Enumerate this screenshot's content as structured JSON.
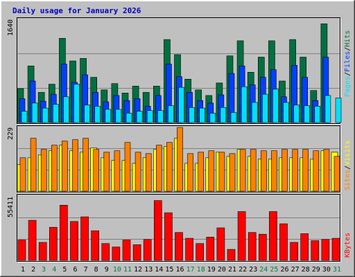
{
  "title": "Daily usage for January 2026",
  "colors": {
    "background": "#c0c0c0",
    "title": "#0000c0",
    "hits": "#007040",
    "files": "#0040ff",
    "pages": "#00e0ff",
    "visits": "#ffff00",
    "sites": "#ff8000",
    "kbytes": "#ff0000",
    "weekend_day_label": "#008040",
    "day_label": "#000000"
  },
  "chart_data": [
    {
      "type": "bar",
      "panel": "hits-files-pages",
      "max_label": "1640",
      "ylim": [
        0,
        1640
      ],
      "legend": {
        "pages": "Pages",
        "files": "Files",
        "hits": "Hits",
        "sep1": "/",
        "sep2": "/"
      },
      "categories": [
        "1",
        "2",
        "3",
        "4",
        "5",
        "6",
        "7",
        "8",
        "9",
        "10",
        "11",
        "12",
        "13",
        "14",
        "15",
        "16",
        "17",
        "18",
        "19",
        "20",
        "21",
        "22",
        "23",
        "24",
        "25",
        "26",
        "27",
        "28",
        "29",
        "30",
        "31"
      ],
      "weekend_days": [
        "3",
        "4",
        "10",
        "11",
        "17",
        "18",
        "24",
        "25",
        "31"
      ],
      "series": [
        {
          "name": "Hits",
          "values": [
            540,
            900,
            480,
            610,
            1340,
            980,
            1020,
            720,
            520,
            620,
            470,
            580,
            480,
            580,
            1320,
            1080,
            690,
            520,
            430,
            630,
            1060,
            1300,
            800,
            1040,
            1300,
            660,
            1320,
            1040,
            510,
            1570,
            0
          ]
        },
        {
          "name": "Files",
          "values": [
            380,
            660,
            340,
            450,
            930,
            640,
            760,
            480,
            330,
            430,
            350,
            380,
            260,
            430,
            930,
            730,
            480,
            350,
            310,
            440,
            780,
            900,
            600,
            720,
            840,
            410,
            910,
            720,
            350,
            1040,
            0
          ]
        },
        {
          "name": "Pages",
          "values": [
            180,
            310,
            230,
            290,
            410,
            610,
            280,
            260,
            210,
            210,
            150,
            180,
            190,
            190,
            270,
            560,
            240,
            230,
            150,
            240,
            160,
            570,
            320,
            450,
            530,
            320,
            280,
            270,
            260,
            430,
            390
          ]
        }
      ]
    },
    {
      "type": "bar",
      "panel": "visits-sites",
      "max_label": "229",
      "ylim": [
        0,
        229
      ],
      "legend": {
        "sites": "Sites",
        "visits": "Visits",
        "sep": "/"
      },
      "categories": [
        "1",
        "2",
        "3",
        "4",
        "5",
        "6",
        "7",
        "8",
        "9",
        "10",
        "11",
        "12",
        "13",
        "14",
        "15",
        "16",
        "17",
        "18",
        "19",
        "20",
        "21",
        "22",
        "23",
        "24",
        "25",
        "26",
        "27",
        "28",
        "29",
        "30",
        "31"
      ],
      "series": [
        {
          "name": "Visits",
          "values": [
            95,
            120,
            130,
            145,
            165,
            145,
            140,
            155,
            120,
            110,
            110,
            100,
            120,
            150,
            160,
            190,
            100,
            100,
            120,
            140,
            125,
            150,
            125,
            115,
            115,
            120,
            120,
            120,
            115,
            145,
            140
          ]
        },
        {
          "name": "Sites",
          "values": [
            120,
            190,
            150,
            165,
            180,
            185,
            190,
            150,
            140,
            145,
            175,
            140,
            135,
            165,
            175,
            229,
            135,
            140,
            145,
            140,
            135,
            150,
            150,
            145,
            145,
            150,
            150,
            150,
            145,
            150,
            125
          ]
        }
      ]
    },
    {
      "type": "bar",
      "panel": "kbytes",
      "max_label": "55411",
      "ylim": [
        0,
        55411
      ],
      "legend": {
        "kbytes": "KBytes"
      },
      "categories": [
        "1",
        "2",
        "3",
        "4",
        "5",
        "6",
        "7",
        "8",
        "9",
        "10",
        "11",
        "12",
        "13",
        "14",
        "15",
        "16",
        "17",
        "18",
        "19",
        "20",
        "21",
        "22",
        "23",
        "24",
        "25",
        "26",
        "27",
        "28",
        "29",
        "30",
        "31"
      ],
      "series": [
        {
          "name": "KBytes",
          "values": [
            17500,
            34500,
            15500,
            28500,
            47500,
            33500,
            37500,
            25500,
            14500,
            11500,
            17500,
            13500,
            18000,
            51500,
            41000,
            24000,
            19000,
            14500,
            20000,
            28000,
            9500,
            42000,
            24000,
            22500,
            42000,
            31500,
            15500,
            23000,
            17000,
            18000,
            19000
          ]
        }
      ]
    }
  ]
}
